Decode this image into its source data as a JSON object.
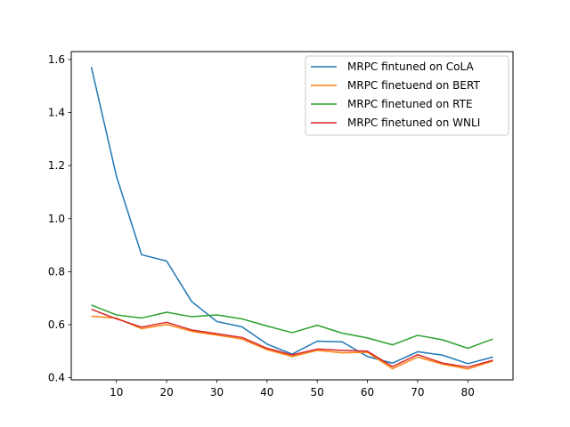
{
  "chart_data": {
    "type": "line",
    "title": "",
    "xlabel": "",
    "ylabel": "",
    "xlim": [
      1,
      89
    ],
    "ylim": [
      0.392,
      1.63
    ],
    "x_ticks": [
      10,
      20,
      30,
      40,
      50,
      60,
      70,
      80
    ],
    "y_ticks": [
      0.4,
      0.6,
      0.8,
      1.0,
      1.2,
      1.4,
      1.6
    ],
    "y_tick_labels": [
      "0.4",
      "0.6",
      "0.8",
      "1.0",
      "1.2",
      "1.4",
      "1.6"
    ],
    "grid": false,
    "legend_position": "top-right",
    "x": [
      5,
      10,
      15,
      20,
      25,
      30,
      35,
      40,
      45,
      50,
      55,
      60,
      65,
      70,
      75,
      80,
      85
    ],
    "series": [
      {
        "name": "MRPC fintuned on CoLA",
        "color": "#1f77b4",
        "values": [
          1.572,
          1.16,
          0.864,
          0.84,
          0.687,
          0.612,
          0.592,
          0.527,
          0.489,
          0.538,
          0.535,
          0.48,
          0.455,
          0.498,
          0.485,
          0.453,
          0.478
        ]
      },
      {
        "name": "MRPC finetuend on BERT",
        "color": "#ff7f0e",
        "values": [
          0.632,
          0.625,
          0.585,
          0.601,
          0.575,
          0.561,
          0.546,
          0.506,
          0.48,
          0.503,
          0.494,
          0.496,
          0.434,
          0.478,
          0.451,
          0.433,
          0.463
        ]
      },
      {
        "name": "MRPC finetuned on RTE",
        "color": "#2ca02c",
        "values": [
          0.674,
          0.637,
          0.625,
          0.647,
          0.63,
          0.637,
          0.622,
          0.595,
          0.57,
          0.598,
          0.568,
          0.55,
          0.524,
          0.56,
          0.543,
          0.511,
          0.546
        ]
      },
      {
        "name": "MRPC finetuned on WNLI",
        "color": "#d62728",
        "values": [
          0.658,
          0.622,
          0.591,
          0.609,
          0.58,
          0.566,
          0.552,
          0.511,
          0.486,
          0.508,
          0.503,
          0.5,
          0.442,
          0.487,
          0.455,
          0.44,
          0.466
        ]
      }
    ]
  }
}
